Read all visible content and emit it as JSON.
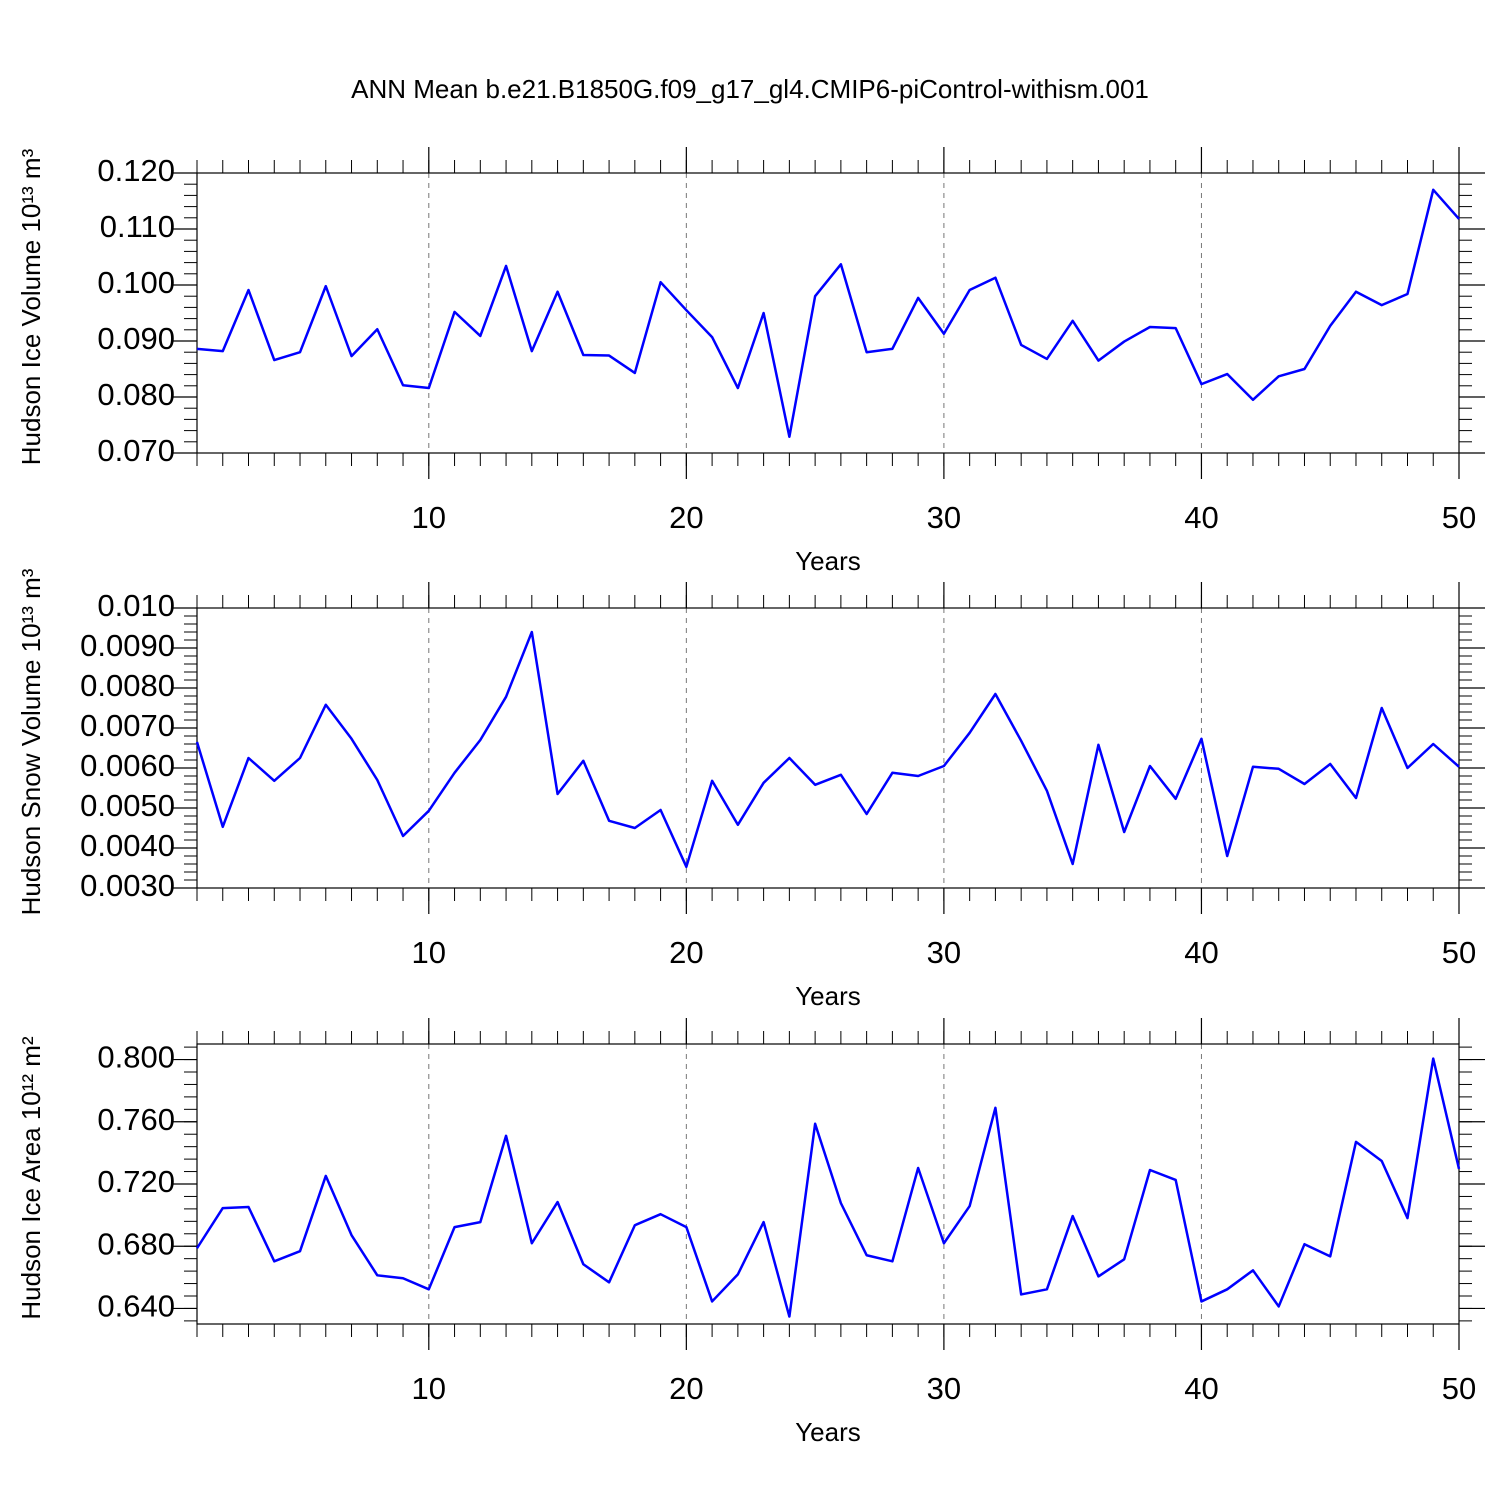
{
  "title": "ANN Mean b.e21.B1850G.f09_g17_gl4.CMIP6-piControl-withism.001",
  "chart_data": [
    {
      "type": "line",
      "ylabel": "Hudson Ice Volume 10¹³ m³",
      "xlabel": "Years",
      "grid": true,
      "xlim": [
        1,
        50
      ],
      "xticks": [
        10,
        20,
        30,
        40,
        50
      ],
      "ylim": [
        0.07,
        0.12
      ],
      "yticks": [
        {
          "value": 0.07,
          "label": "0.070"
        },
        {
          "value": 0.08,
          "label": "0.080"
        },
        {
          "value": 0.09,
          "label": "0.090"
        },
        {
          "value": 0.1,
          "label": "0.100"
        },
        {
          "value": 0.11,
          "label": "0.110"
        },
        {
          "value": 0.12,
          "label": "0.120"
        }
      ],
      "x": [
        1,
        2,
        3,
        4,
        5,
        6,
        7,
        8,
        9,
        10,
        11,
        12,
        13,
        14,
        15,
        16,
        17,
        18,
        19,
        20,
        21,
        22,
        23,
        24,
        25,
        26,
        27,
        28,
        29,
        30,
        31,
        32,
        33,
        34,
        35,
        36,
        37,
        38,
        39,
        40,
        41,
        42,
        43,
        44,
        45,
        46,
        47,
        48,
        49,
        50
      ],
      "series": [
        {
          "color": "#0000ff",
          "values": [
            0.0886,
            0.0882,
            0.0991,
            0.0866,
            0.088,
            0.0998,
            0.0873,
            0.0921,
            0.0821,
            0.0816,
            0.0952,
            0.0909,
            0.1034,
            0.0882,
            0.0988,
            0.0875,
            0.0874,
            0.0843,
            0.1005,
            0.0955,
            0.0907,
            0.0816,
            0.095,
            0.0729,
            0.098,
            0.1037,
            0.088,
            0.0886,
            0.0977,
            0.0913,
            0.0991,
            0.1013,
            0.0893,
            0.0868,
            0.0936,
            0.0865,
            0.0899,
            0.0925,
            0.0923,
            0.0823,
            0.0841,
            0.0795,
            0.0837,
            0.085,
            0.0927,
            0.0988,
            0.0964,
            0.0984,
            0.117,
            0.1118
          ]
        }
      ]
    },
    {
      "type": "line",
      "ylabel": "Hudson Snow Volume 10¹³ m³",
      "xlabel": "Years",
      "grid": true,
      "xlim": [
        1,
        50
      ],
      "xticks": [
        10,
        20,
        30,
        40,
        50
      ],
      "ylim": [
        0.003,
        0.01
      ],
      "yticks": [
        {
          "value": 0.003,
          "label": "0.0030"
        },
        {
          "value": 0.004,
          "label": "0.0040"
        },
        {
          "value": 0.005,
          "label": "0.0050"
        },
        {
          "value": 0.006,
          "label": "0.0060"
        },
        {
          "value": 0.007,
          "label": "0.0070"
        },
        {
          "value": 0.008,
          "label": "0.0080"
        },
        {
          "value": 0.009,
          "label": "0.0090"
        },
        {
          "value": 0.01,
          "label": "0.010"
        }
      ],
      "x": [
        1,
        2,
        3,
        4,
        5,
        6,
        7,
        8,
        9,
        10,
        11,
        12,
        13,
        14,
        15,
        16,
        17,
        18,
        19,
        20,
        21,
        22,
        23,
        24,
        25,
        26,
        27,
        28,
        29,
        30,
        31,
        32,
        33,
        34,
        35,
        36,
        37,
        38,
        39,
        40,
        41,
        42,
        43,
        44,
        45,
        46,
        47,
        48,
        49,
        50
      ],
      "series": [
        {
          "color": "#0000ff",
          "values": [
            0.00665,
            0.00453,
            0.00625,
            0.00568,
            0.00625,
            0.00758,
            0.00673,
            0.0057,
            0.0043,
            0.00493,
            0.00588,
            0.0067,
            0.00778,
            0.0094,
            0.00535,
            0.00618,
            0.00468,
            0.0045,
            0.00495,
            0.00353,
            0.00568,
            0.00458,
            0.00563,
            0.00625,
            0.00558,
            0.00583,
            0.00485,
            0.00588,
            0.0058,
            0.00605,
            0.00688,
            0.00785,
            0.00668,
            0.00543,
            0.0036,
            0.00658,
            0.0044,
            0.00605,
            0.00523,
            0.00673,
            0.0038,
            0.00603,
            0.00598,
            0.0056,
            0.0061,
            0.00525,
            0.0075,
            0.006,
            0.0066,
            0.00603
          ]
        }
      ]
    },
    {
      "type": "line",
      "ylabel": "Hudson Ice Area 10¹² m²",
      "xlabel": "Years",
      "grid": true,
      "xlim": [
        1,
        50
      ],
      "xticks": [
        10,
        20,
        30,
        40,
        50
      ],
      "ylim": [
        0.63,
        0.81
      ],
      "yticks": [
        {
          "value": 0.64,
          "label": "0.640"
        },
        {
          "value": 0.68,
          "label": "0.680"
        },
        {
          "value": 0.72,
          "label": "0.720"
        },
        {
          "value": 0.76,
          "label": "0.760"
        },
        {
          "value": 0.8,
          "label": "0.800"
        }
      ],
      "x": [
        1,
        2,
        3,
        4,
        5,
        6,
        7,
        8,
        9,
        10,
        11,
        12,
        13,
        14,
        15,
        16,
        17,
        18,
        19,
        20,
        21,
        22,
        23,
        24,
        25,
        26,
        27,
        28,
        29,
        30,
        31,
        32,
        33,
        34,
        35,
        36,
        37,
        38,
        39,
        40,
        41,
        42,
        43,
        44,
        45,
        46,
        47,
        48,
        49,
        50
      ],
      "series": [
        {
          "color": "#0000ff",
          "values": [
            0.6787,
            0.7045,
            0.7052,
            0.6703,
            0.6768,
            0.7252,
            0.6871,
            0.6613,
            0.6594,
            0.6523,
            0.6923,
            0.6955,
            0.751,
            0.6819,
            0.7084,
            0.6684,
            0.6568,
            0.6935,
            0.7006,
            0.6923,
            0.6445,
            0.6619,
            0.6955,
            0.6348,
            0.7587,
            0.7077,
            0.6742,
            0.6703,
            0.7303,
            0.6819,
            0.7058,
            0.769,
            0.649,
            0.6523,
            0.6994,
            0.6606,
            0.6716,
            0.729,
            0.7226,
            0.6445,
            0.6523,
            0.6645,
            0.6413,
            0.6813,
            0.6735,
            0.7471,
            0.7348,
            0.6981,
            0.8006,
            0.7297
          ]
        }
      ]
    }
  ]
}
